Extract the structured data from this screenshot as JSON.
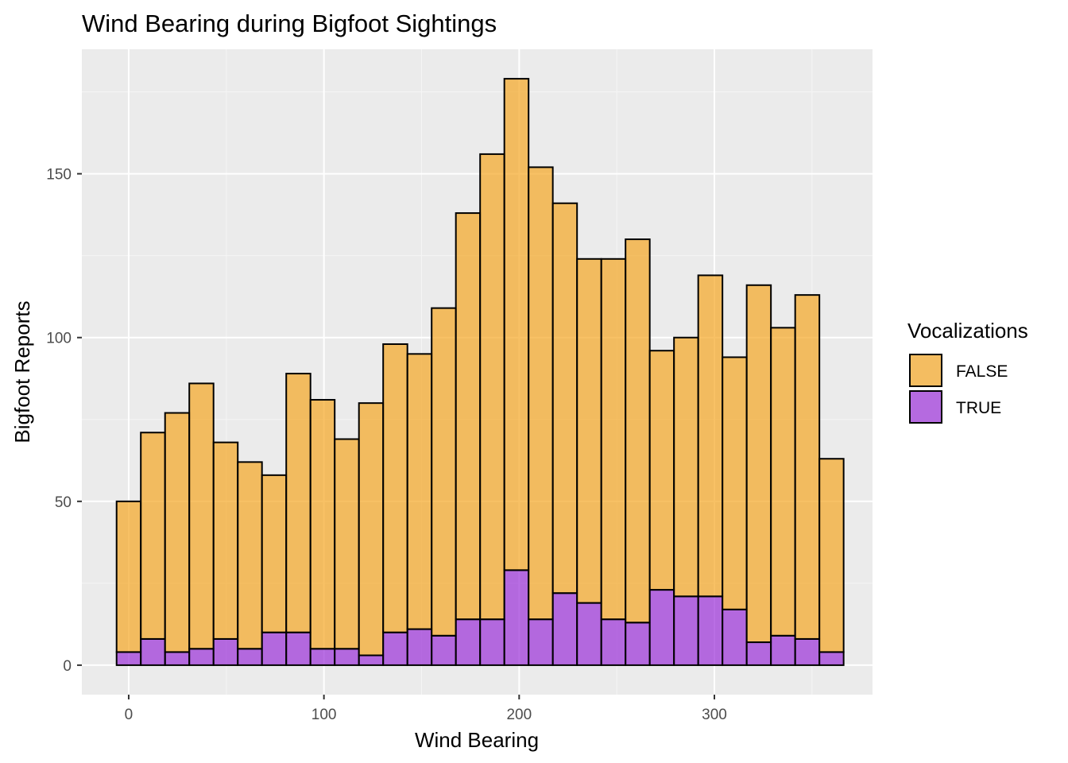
{
  "chart_data": {
    "type": "bar",
    "stacked": true,
    "title": "Wind Bearing during Bigfoot Sightings",
    "xlabel": "Wind Bearing",
    "ylabel": "Bigfoot Reports",
    "xlim": [
      -24,
      381
    ],
    "ylim": [
      -9,
      188
    ],
    "x_ticks": [
      0,
      100,
      200,
      300
    ],
    "y_ticks": [
      0,
      50,
      100,
      150
    ],
    "x_minor": [
      50,
      150,
      250,
      350
    ],
    "y_minor": [
      25,
      75,
      125,
      175
    ],
    "bin_width": 12.41,
    "x": [
      0,
      12.41,
      24.83,
      37.24,
      49.66,
      62.07,
      74.48,
      86.9,
      99.31,
      111.72,
      124.14,
      136.55,
      148.97,
      161.38,
      173.79,
      186.21,
      198.62,
      211.03,
      223.45,
      235.86,
      248.28,
      260.69,
      273.1,
      285.52,
      297.93,
      310.34,
      322.76,
      335.17,
      347.59,
      360
    ],
    "grid": true,
    "legend": {
      "title": "Vocalizations",
      "position": "right"
    },
    "series": [
      {
        "name": "TRUE",
        "color": "#9b30d9",
        "values": [
          4,
          8,
          4,
          5,
          8,
          5,
          10,
          10,
          5,
          5,
          3,
          10,
          11,
          9,
          14,
          14,
          29,
          14,
          22,
          19,
          14,
          13,
          23,
          21,
          21,
          17,
          7,
          9,
          8,
          4
        ]
      },
      {
        "name": "FALSE",
        "color": "#f5a623",
        "values": [
          46,
          63,
          73,
          81,
          60,
          57,
          48,
          79,
          76,
          64,
          77,
          88,
          84,
          100,
          124,
          142,
          150,
          138,
          119,
          105,
          110,
          117,
          73,
          79,
          98,
          77,
          109,
          94,
          105,
          59
        ]
      }
    ],
    "legend_order": [
      "FALSE",
      "TRUE"
    ]
  }
}
